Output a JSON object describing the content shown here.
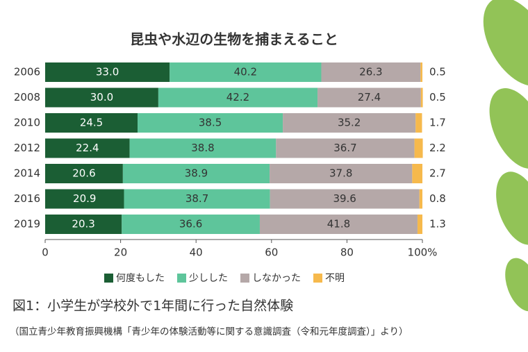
{
  "chart_data": {
    "type": "stacked-bar-horizontal",
    "title": "昆虫や水辺の生物を捕まえること",
    "caption": "図1：小学生が学校外で1年間に行った自然体験",
    "source": "（国立青少年教育振興機構「青少年の体験活動等に関する意識調査（令和元年度調査）」より）",
    "categories": [
      "2006",
      "2008",
      "2010",
      "2012",
      "2014",
      "2016",
      "2019"
    ],
    "series": [
      {
        "name": "何度もした",
        "color": "#1b5e34",
        "values": [
          33.0,
          30.0,
          24.5,
          22.4,
          20.6,
          20.9,
          20.3
        ],
        "value_labels": [
          "33.0",
          "30.0",
          "24.5",
          "22.4",
          "20.6",
          "20.9",
          "20.3"
        ]
      },
      {
        "name": "少しした",
        "color": "#5ec59b",
        "values": [
          40.2,
          42.2,
          38.5,
          38.8,
          38.9,
          38.7,
          36.6
        ],
        "value_labels": [
          "40.2",
          "42.2",
          "38.5",
          "38.8",
          "38.9",
          "38.7",
          "36.6"
        ]
      },
      {
        "name": "しなかった",
        "color": "#b5a8a8",
        "values": [
          26.3,
          27.4,
          35.2,
          36.7,
          37.8,
          39.6,
          41.8
        ],
        "value_labels": [
          "26.3",
          "27.4",
          "35.2",
          "36.7",
          "37.8",
          "39.6",
          "41.8"
        ]
      },
      {
        "name": "不明",
        "color": "#f6b94c",
        "values": [
          0.5,
          0.5,
          1.7,
          2.2,
          2.7,
          0.8,
          1.3
        ],
        "value_labels": [
          "0.5",
          "0.5",
          "1.7",
          "2.2",
          "2.7",
          "0.8",
          "1.3"
        ]
      }
    ],
    "xlim": [
      0,
      100
    ],
    "xticks": [
      0,
      20,
      40,
      60,
      80,
      {
        "value": 100,
        "label": "100%"
      }
    ]
  }
}
